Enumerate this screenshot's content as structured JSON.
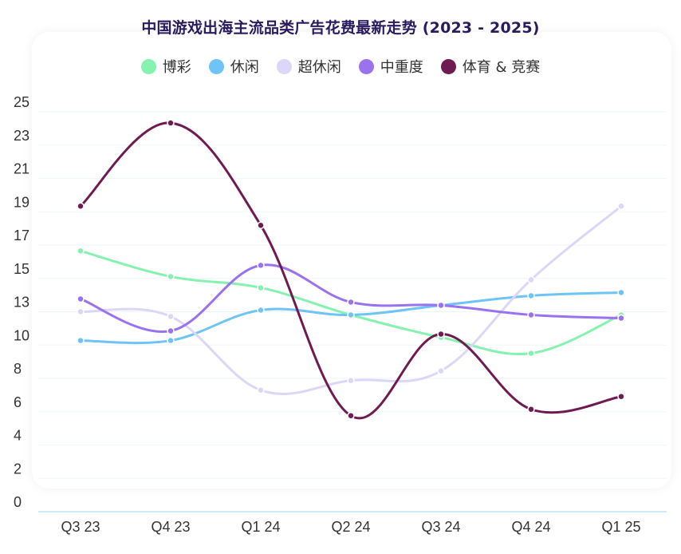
{
  "chart_data": {
    "type": "line",
    "title": "中国游戏出海主流品类广告花费最新走势 (2023 - 2025)",
    "xlabel": "",
    "ylabel": "",
    "ylim": [
      0,
      25
    ],
    "grid": true,
    "legend_position": "top",
    "categories": [
      "Q3 23",
      "Q4 23",
      "Q1 24",
      "Q2 24",
      "Q3 24",
      "Q4 24",
      "Q1 25"
    ],
    "y_ticks": [
      "0",
      "2",
      "4",
      "6",
      "8",
      "10",
      "13",
      "15",
      "17",
      "19",
      "21",
      "23",
      "25"
    ],
    "series": [
      {
        "name": "博彩",
        "color": "#86f2b0",
        "values": [
          16.3,
          14.7,
          14.0,
          12.3,
          10.9,
          9.9,
          12.3
        ]
      },
      {
        "name": "休闲",
        "color": "#6ec3f7",
        "values": [
          10.7,
          10.7,
          12.6,
          12.3,
          12.9,
          13.5,
          13.7
        ]
      },
      {
        "name": "超休闲",
        "color": "#dcd6f9",
        "values": [
          12.5,
          12.2,
          7.6,
          8.2,
          8.8,
          14.5,
          19.1
        ]
      },
      {
        "name": "中重度",
        "color": "#9b72ee",
        "values": [
          13.3,
          11.3,
          15.4,
          13.1,
          12.9,
          12.3,
          12.1
        ]
      },
      {
        "name": "体育 & 竞赛",
        "color": "#6e1b52",
        "values": [
          19.1,
          24.3,
          17.9,
          6.0,
          11.1,
          6.4,
          7.2
        ]
      }
    ]
  }
}
